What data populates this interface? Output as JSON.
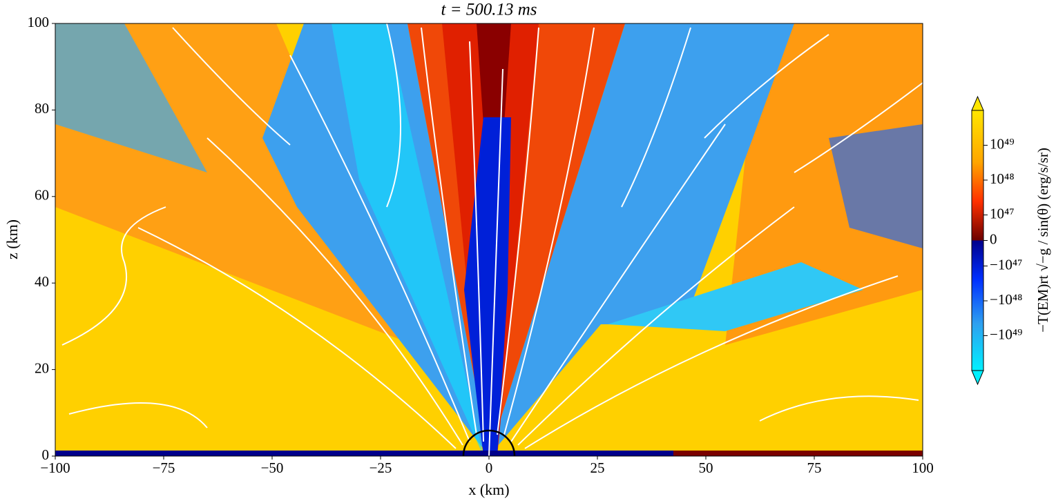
{
  "chart_data": {
    "type": "heatmap",
    "title": "t = 500.13 ms",
    "xlabel": "x (km)",
    "ylabel": "z (km)",
    "xlim": [
      -100,
      100
    ],
    "ylim": [
      0,
      100
    ],
    "xticks": [
      {
        "value": -100,
        "label": "−100"
      },
      {
        "value": -75,
        "label": "−75"
      },
      {
        "value": -50,
        "label": "−50"
      },
      {
        "value": -25,
        "label": "−25"
      },
      0,
      25,
      50,
      75,
      100
    ],
    "yticks": [
      0,
      20,
      40,
      60,
      80,
      100
    ],
    "colorbar": {
      "label": "−T(EM)rt √−g / sin(θ)   (erg/s/sr)",
      "clim": [
        -1e+50,
        1e+50
      ],
      "linthresh": 1e+47,
      "ticks": [
        {
          "value": 1e+49,
          "label": "10⁴⁹"
        },
        {
          "value": 1e+48,
          "label": "10⁴⁸"
        },
        {
          "value": 1e+47,
          "label": "10⁴⁷"
        },
        0,
        {
          "value": -1e+47,
          "label": "−10⁴⁷"
        },
        {
          "value": -1e+48,
          "label": "−10⁴⁸"
        },
        {
          "value": -1e+49,
          "label": "−10⁴⁹"
        }
      ]
    }
  }
}
